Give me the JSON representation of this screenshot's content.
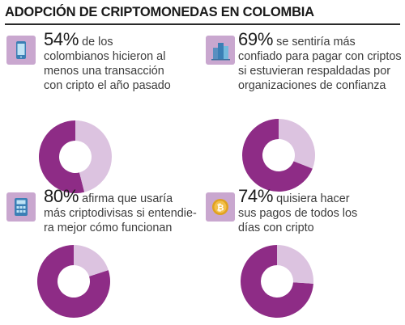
{
  "title": "ADOPCIÓN DE CRIPTOMONEDAS EN COLOMBIA",
  "colors": {
    "filled": "#8e2c86",
    "remainder": "#dcc3e0",
    "icon_bg": "#c9a7cf"
  },
  "panels": [
    {
      "icon": "smartphone-icon",
      "percent_label": "54%",
      "lines": [
        "de los",
        "colombianos hicieron al",
        "menos una transacción",
        "con cripto el año pasado"
      ]
    },
    {
      "icon": "buildings-icon",
      "percent_label": "69%",
      "lines": [
        "se sentiría más",
        "confiado para pagar con criptos",
        "si estuvieran respaldadas por",
        "organizaciones de confianza"
      ]
    },
    {
      "icon": "calculator-icon",
      "percent_label": "80%",
      "lines": [
        "afirma que usaría",
        "más criptodivisas si entendie-",
        "ra mejor cómo funcionan"
      ]
    },
    {
      "icon": "bitcoin-coin-icon",
      "percent_label": "74%",
      "lines": [
        "quisiera hacer",
        "sus pagos de todos los",
        "días con cripto"
      ]
    }
  ],
  "chart_data": [
    {
      "type": "pie",
      "variant": "donut",
      "values": [
        54,
        46
      ],
      "labels": [
        "54%",
        ""
      ]
    },
    {
      "type": "pie",
      "variant": "donut",
      "values": [
        69,
        31
      ],
      "labels": [
        "69%",
        ""
      ]
    },
    {
      "type": "pie",
      "variant": "donut",
      "values": [
        80,
        20
      ],
      "labels": [
        "80%",
        ""
      ]
    },
    {
      "type": "pie",
      "variant": "donut",
      "values": [
        74,
        26
      ],
      "labels": [
        "74%",
        ""
      ]
    }
  ]
}
